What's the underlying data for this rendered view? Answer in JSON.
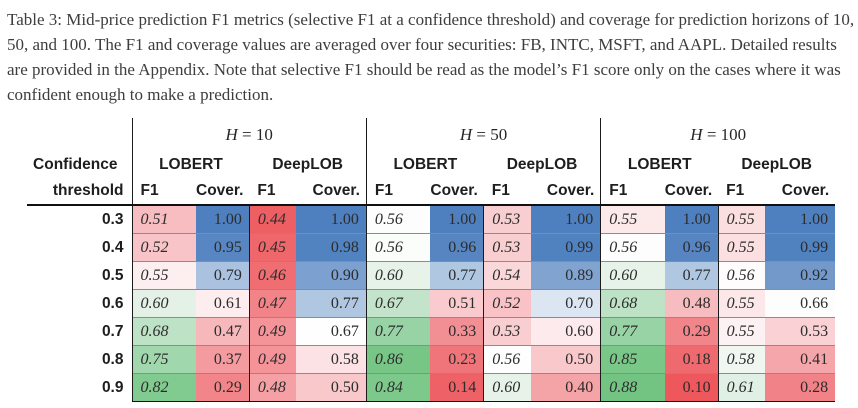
{
  "caption": "Table 3: Mid-price prediction F1 metrics (selective F1 at a confidence threshold) and coverage for prediction horizons of 10, 50, and 100. The F1 and coverage values are averaged over four securities: FB, INTC, MSFT, and AAPL. Detailed results are provided in the Appendix. Note that selective F1 should be read as the model’s F1 score only on the cases where it was confident enough to make a prediction.",
  "table": {
    "row_header": {
      "line1": "Confidence",
      "line2": "threshold"
    },
    "horizons": [
      {
        "symbol": "H",
        "value": "= 10"
      },
      {
        "symbol": "H",
        "value": "= 50"
      },
      {
        "symbol": "H",
        "value": "= 100"
      }
    ],
    "models": [
      "LOBERT",
      "DeepLOB"
    ],
    "metrics": [
      "F1",
      "Cover."
    ],
    "palette": {
      "best_f1_green": "#73c482",
      "worst_f1_red": "#ee5f64",
      "full_coverage_blue": "#4e80bf",
      "low_coverage_red": "#ee585d",
      "neutral_white": "#fdfdfd"
    },
    "rows": [
      {
        "threshold": "0.3",
        "cells": [
          {
            "v": "0.51",
            "c": "#f7bdc1"
          },
          {
            "v": "1.00",
            "c": "#4e80bf"
          },
          {
            "v": "0.44",
            "c": "#ee5f64"
          },
          {
            "v": "1.00",
            "c": "#4e80bf"
          },
          {
            "v": "0.56",
            "c": "#fdfdfd"
          },
          {
            "v": "1.00",
            "c": "#4e80bf"
          },
          {
            "v": "0.53",
            "c": "#f9ced1"
          },
          {
            "v": "1.00",
            "c": "#4e80bf"
          },
          {
            "v": "0.55",
            "c": "#fce9ea"
          },
          {
            "v": "1.00",
            "c": "#4e80bf"
          },
          {
            "v": "0.55",
            "c": "#fbdee0"
          },
          {
            "v": "1.00",
            "c": "#4e80bf"
          }
        ]
      },
      {
        "threshold": "0.4",
        "cells": [
          {
            "v": "0.52",
            "c": "#f8c4c8"
          },
          {
            "v": "0.95",
            "c": "#5886c3"
          },
          {
            "v": "0.45",
            "c": "#ef666b"
          },
          {
            "v": "0.98",
            "c": "#5283c1"
          },
          {
            "v": "0.56",
            "c": "#fbfdfb"
          },
          {
            "v": "0.96",
            "c": "#5685c2"
          },
          {
            "v": "0.53",
            "c": "#f9ced1"
          },
          {
            "v": "0.99",
            "c": "#5082c0"
          },
          {
            "v": "0.56",
            "c": "#fdfdfd"
          },
          {
            "v": "0.96",
            "c": "#5685c2"
          },
          {
            "v": "0.55",
            "c": "#fbdfe1"
          },
          {
            "v": "0.99",
            "c": "#5082c0"
          }
        ]
      },
      {
        "threshold": "0.5",
        "cells": [
          {
            "v": "0.55",
            "c": "#fdeff0"
          },
          {
            "v": "0.79",
            "c": "#aac2e0"
          },
          {
            "v": "0.46",
            "c": "#f06d72"
          },
          {
            "v": "0.90",
            "c": "#7ca0cf"
          },
          {
            "v": "0.60",
            "c": "#e7f3e9"
          },
          {
            "v": "0.77",
            "c": "#b0c7e2"
          },
          {
            "v": "0.54",
            "c": "#fad8da"
          },
          {
            "v": "0.89",
            "c": "#80a3d0"
          },
          {
            "v": "0.60",
            "c": "#e7f3e9"
          },
          {
            "v": "0.77",
            "c": "#b0c7e2"
          },
          {
            "v": "0.56",
            "c": "#fefcfc"
          },
          {
            "v": "0.92",
            "c": "#7399cb"
          }
        ]
      },
      {
        "threshold": "0.6",
        "cells": [
          {
            "v": "0.60",
            "c": "#e3f1e6"
          },
          {
            "v": "0.61",
            "c": "#fdedee"
          },
          {
            "v": "0.47",
            "c": "#f28489"
          },
          {
            "v": "0.77",
            "c": "#b0c7e2"
          },
          {
            "v": "0.67",
            "c": "#c3e4ca"
          },
          {
            "v": "0.51",
            "c": "#f9cbce"
          },
          {
            "v": "0.52",
            "c": "#f8c2c6"
          },
          {
            "v": "0.70",
            "c": "#dce6f2"
          },
          {
            "v": "0.68",
            "c": "#bee2c6"
          },
          {
            "v": "0.48",
            "c": "#f7bcc0"
          },
          {
            "v": "0.55",
            "c": "#fce7e9"
          },
          {
            "v": "0.66",
            "c": "#fdfdfe"
          }
        ]
      },
      {
        "threshold": "0.7",
        "cells": [
          {
            "v": "0.68",
            "c": "#bee2c6"
          },
          {
            "v": "0.47",
            "c": "#f7b8bc"
          },
          {
            "v": "0.49",
            "c": "#f49499"
          },
          {
            "v": "0.67",
            "c": "#fefeff"
          },
          {
            "v": "0.77",
            "c": "#97d3a4"
          },
          {
            "v": "0.33",
            "c": "#f28f94"
          },
          {
            "v": "0.53",
            "c": "#f9ced1"
          },
          {
            "v": "0.60",
            "c": "#fdeaec"
          },
          {
            "v": "0.77",
            "c": "#97d3a4"
          },
          {
            "v": "0.29",
            "c": "#f1858a"
          },
          {
            "v": "0.55",
            "c": "#fdf2f3"
          },
          {
            "v": "0.53",
            "c": "#fad2d5"
          }
        ]
      },
      {
        "threshold": "0.8",
        "cells": [
          {
            "v": "0.75",
            "c": "#a0d7ac"
          },
          {
            "v": "0.37",
            "c": "#f49ba0"
          },
          {
            "v": "0.49",
            "c": "#f49499"
          },
          {
            "v": "0.58",
            "c": "#fce2e4"
          },
          {
            "v": "0.86",
            "c": "#77c685"
          },
          {
            "v": "0.23",
            "c": "#f0757a"
          },
          {
            "v": "0.56",
            "c": "#fefefe"
          },
          {
            "v": "0.50",
            "c": "#f9c8cb"
          },
          {
            "v": "0.85",
            "c": "#7ac887"
          },
          {
            "v": "0.18",
            "c": "#ef6a6f"
          },
          {
            "v": "0.58",
            "c": "#f0f7f1"
          },
          {
            "v": "0.41",
            "c": "#f5a6aa"
          }
        ]
      },
      {
        "threshold": "0.9",
        "cells": [
          {
            "v": "0.82",
            "c": "#82cb90"
          },
          {
            "v": "0.29",
            "c": "#f1858a"
          },
          {
            "v": "0.48",
            "c": "#f5a0a5"
          },
          {
            "v": "0.50",
            "c": "#f9c8cb"
          },
          {
            "v": "0.84",
            "c": "#7dc98c"
          },
          {
            "v": "0.14",
            "c": "#ee6166"
          },
          {
            "v": "0.60",
            "c": "#e7f3e9"
          },
          {
            "v": "0.40",
            "c": "#f4a3a7"
          },
          {
            "v": "0.88",
            "c": "#73c482"
          },
          {
            "v": "0.10",
            "c": "#ee585d"
          },
          {
            "v": "0.61",
            "c": "#e1f0e4"
          },
          {
            "v": "0.28",
            "c": "#f18388"
          }
        ]
      }
    ]
  }
}
